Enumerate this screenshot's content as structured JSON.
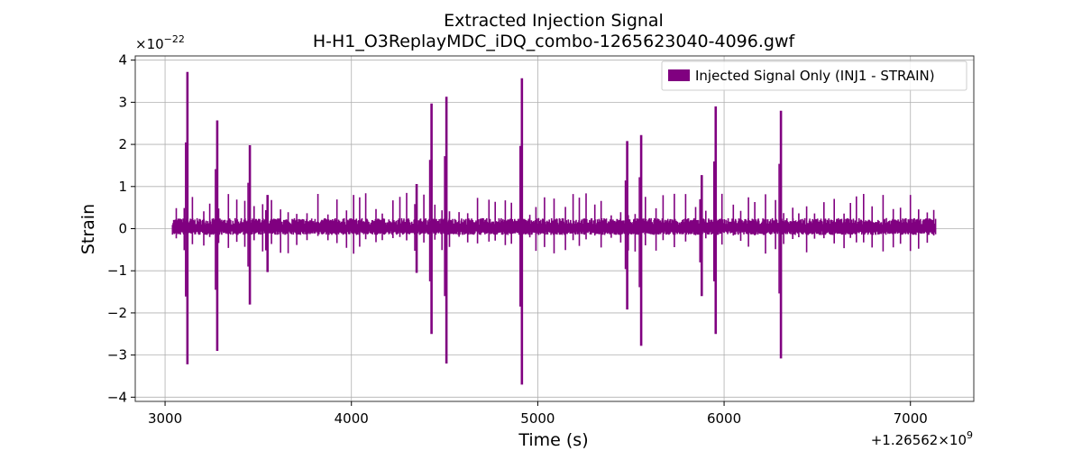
{
  "chart_data": {
    "type": "line",
    "title": "Extracted Injection Signal",
    "subtitle": "H-H1_O3ReplayMDC_iDQ_combo-1265623040-4096.gwf",
    "xlabel": "Time (s)",
    "ylabel": "Strain",
    "x_offset_label": "+1.26562×10",
    "x_offset_exponent": "9",
    "y_scale_label": "×10",
    "y_scale_exponent": "−22",
    "xlim": [
      2840,
      7340
    ],
    "ylim": [
      -4.1,
      4.1
    ],
    "x_ticks": [
      {
        "value": 3000,
        "label": "3000"
      },
      {
        "value": 4000,
        "label": "4000"
      },
      {
        "value": 5000,
        "label": "5000"
      },
      {
        "value": 6000,
        "label": "6000"
      },
      {
        "value": 7000,
        "label": "7000"
      }
    ],
    "y_ticks": [
      {
        "value": -4,
        "label": "−4"
      },
      {
        "value": -3,
        "label": "−3"
      },
      {
        "value": -2,
        "label": "−2"
      },
      {
        "value": -1,
        "label": "−1"
      },
      {
        "value": 0,
        "label": "0"
      },
      {
        "value": 1,
        "label": "1"
      },
      {
        "value": 2,
        "label": "2"
      },
      {
        "value": 3,
        "label": "3"
      },
      {
        "value": 4,
        "label": "4"
      }
    ],
    "grid": true,
    "legend_position": "top-right",
    "series": [
      {
        "name": "Injected Signal Only (INJ1 - STRAIN)",
        "color": "#800080",
        "x_range": [
          3040,
          7136
        ],
        "noise_band": [
          -0.15,
          0.25
        ],
        "peaks": [
          {
            "x": 3120,
            "max": 3.72,
            "min": -3.22
          },
          {
            "x": 3280,
            "max": 2.57,
            "min": -2.9
          },
          {
            "x": 3455,
            "max": 1.98,
            "min": -1.8
          },
          {
            "x": 3550,
            "max": 0.8,
            "min": -1.03
          },
          {
            "x": 4350,
            "max": 1.06,
            "min": -1.05
          },
          {
            "x": 4430,
            "max": 2.97,
            "min": -2.5
          },
          {
            "x": 4510,
            "max": 3.13,
            "min": -3.2
          },
          {
            "x": 4915,
            "max": 3.57,
            "min": -3.7
          },
          {
            "x": 5480,
            "max": 2.08,
            "min": -1.92
          },
          {
            "x": 5555,
            "max": 2.22,
            "min": -2.78
          },
          {
            "x": 5880,
            "max": 1.27,
            "min": -1.6
          },
          {
            "x": 5955,
            "max": 2.9,
            "min": -2.5
          },
          {
            "x": 6305,
            "max": 2.8,
            "min": -3.08
          }
        ]
      }
    ]
  }
}
